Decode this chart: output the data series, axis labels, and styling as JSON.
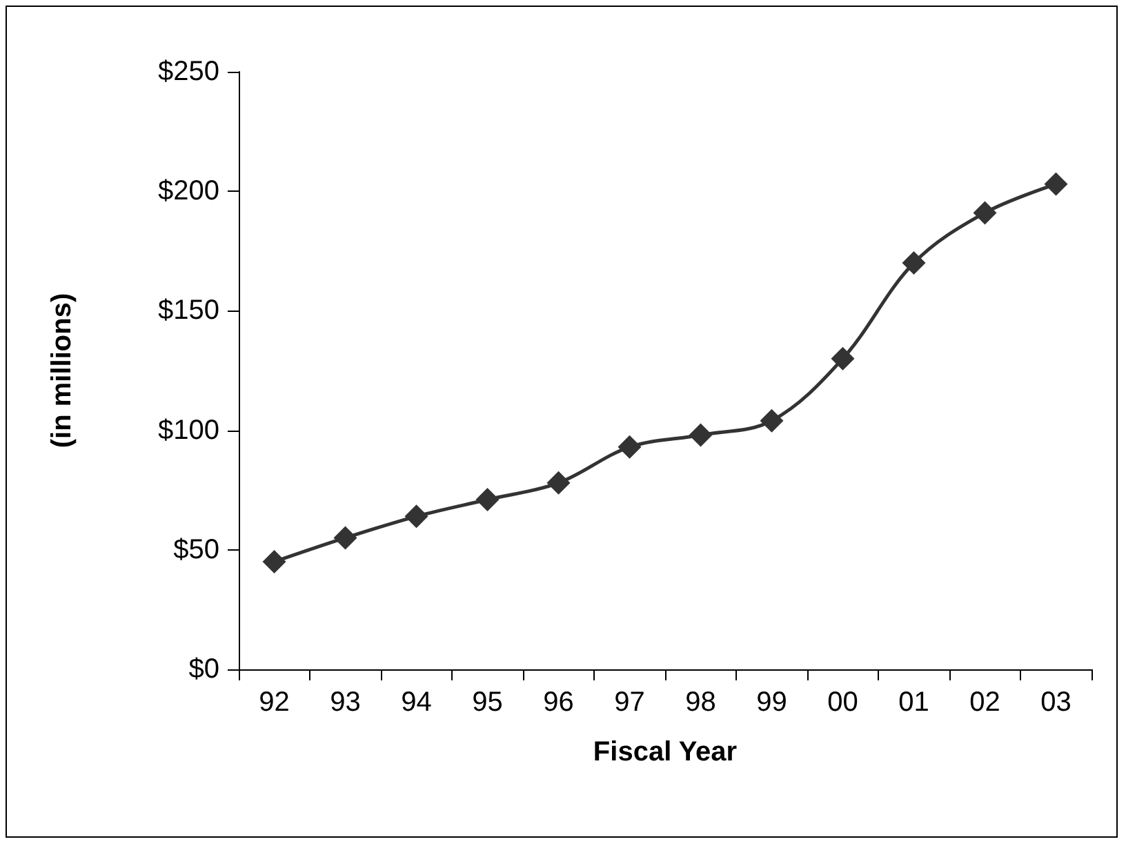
{
  "chart_data": {
    "type": "line",
    "xlabel": "Fiscal Year",
    "ylabel": "(in millions)",
    "categories": [
      "92",
      "93",
      "94",
      "95",
      "96",
      "97",
      "98",
      "99",
      "00",
      "01",
      "02",
      "03"
    ],
    "series": [
      {
        "color": "#333333",
        "values": [
          45,
          55,
          64,
          71,
          78,
          93,
          98,
          104,
          130,
          170,
          191,
          203
        ]
      }
    ],
    "ylim": [
      0,
      250
    ],
    "yticks": [
      {
        "value": 0,
        "label": "$0"
      },
      {
        "value": 50,
        "label": "$50"
      },
      {
        "value": 100,
        "label": "$100"
      },
      {
        "value": 150,
        "label": "$150"
      },
      {
        "value": 200,
        "label": "$200"
      },
      {
        "value": 250,
        "label": "$250"
      }
    ],
    "grid": false,
    "marker": "diamond",
    "line_style": "solid"
  }
}
